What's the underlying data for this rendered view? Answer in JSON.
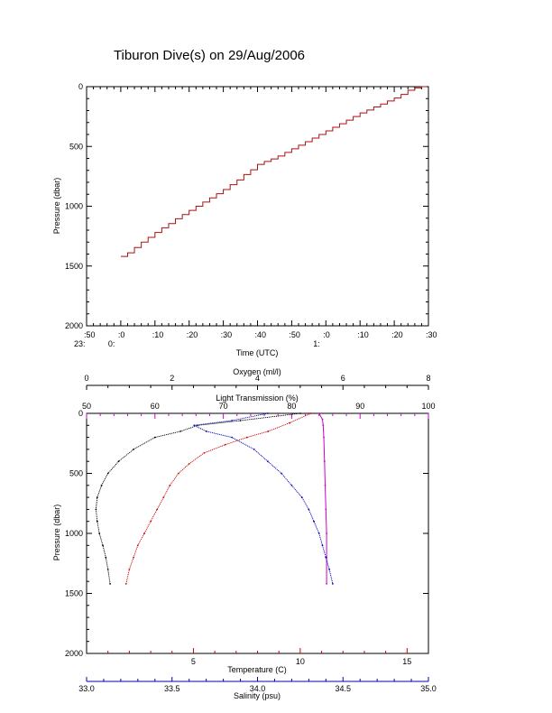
{
  "title": "Tiburon Dive(s) on 29/Aug/2006",
  "colors": {
    "red": "#cc0000",
    "magenta": "#cc00cc",
    "blue": "#0000bb",
    "black": "#000000",
    "dive": "#aa1111"
  },
  "chart_data": [
    {
      "type": "line",
      "title": "Tiburon Dive(s) on 29/Aug/2006",
      "xlabel": "Time (UTC)",
      "ylabel": "Pressure (dbar)",
      "x_ticks_top": [
        ":50",
        ":0",
        ":10",
        ":20",
        ":30",
        ":40",
        ":50",
        ":0",
        ":10",
        ":20",
        ":30"
      ],
      "x_ticks_bottom": [
        "23:",
        "0:",
        "",
        "",
        "",
        "",
        "",
        "1:",
        "",
        "",
        ""
      ],
      "x_minutes": [
        -10,
        0,
        10,
        20,
        30,
        40,
        50,
        60,
        70,
        80,
        90
      ],
      "ylim": [
        2000,
        0
      ],
      "y_ticks": [
        0,
        500,
        1000,
        1500,
        2000
      ],
      "series": [
        {
          "x": [
            0,
            2,
            4,
            6,
            8,
            10,
            12,
            14,
            16,
            18,
            20,
            22,
            24,
            26,
            28,
            30,
            32,
            34,
            36,
            38,
            40,
            42,
            44,
            46,
            48,
            50,
            52,
            54,
            56,
            58,
            60,
            62,
            64,
            66,
            68,
            70,
            72,
            74,
            76,
            78,
            80,
            82,
            84,
            86,
            88
          ],
          "y": [
            1420,
            1390,
            1345,
            1300,
            1260,
            1220,
            1180,
            1145,
            1105,
            1070,
            1035,
            1000,
            965,
            930,
            895,
            860,
            820,
            780,
            735,
            695,
            650,
            625,
            605,
            580,
            550,
            520,
            490,
            460,
            430,
            400,
            370,
            340,
            310,
            280,
            250,
            220,
            195,
            170,
            145,
            120,
            95,
            65,
            30,
            10,
            0
          ]
        }
      ]
    },
    {
      "type": "scatter",
      "ylabel": "Pressure (dbar)",
      "ylim": [
        2000,
        0
      ],
      "y_ticks": [
        0,
        500,
        1000,
        1500,
        2000
      ],
      "axes": {
        "oxygen": {
          "label": "Oxygen (ml/l)",
          "range": [
            0,
            8
          ],
          "ticks": [
            "0",
            "2",
            "4",
            "6",
            "8"
          ]
        },
        "light_transmission": {
          "label": "Light Transmission (%)",
          "range": [
            50,
            100
          ],
          "ticks": [
            "50",
            "60",
            "70",
            "80",
            "90",
            "100"
          ]
        },
        "temperature": {
          "label": "Temperature (C)",
          "range": [
            0,
            16
          ],
          "ticks": [
            "5",
            "10",
            "15"
          ]
        },
        "salinity": {
          "label": "Salinity (psu)",
          "range": [
            33.0,
            35.0
          ],
          "ticks": [
            "33.0",
            "33.5",
            "34.0",
            "34.5",
            "35.0"
          ]
        }
      },
      "series": [
        {
          "axis": "oxygen",
          "color": "black",
          "points": [
            [
              5.0,
              0
            ],
            [
              3.6,
              60
            ],
            [
              2.6,
              100
            ],
            [
              2.2,
              150
            ],
            [
              1.6,
              200
            ],
            [
              1.1,
              300
            ],
            [
              0.75,
              400
            ],
            [
              0.5,
              500
            ],
            [
              0.35,
              600
            ],
            [
              0.25,
              700
            ],
            [
              0.22,
              800
            ],
            [
              0.25,
              900
            ],
            [
              0.3,
              1000
            ],
            [
              0.38,
              1100
            ],
            [
              0.45,
              1200
            ],
            [
              0.5,
              1300
            ],
            [
              0.55,
              1420
            ]
          ]
        },
        {
          "axis": "light_transmission",
          "color": "magenta",
          "points": [
            [
              84.0,
              0
            ],
            [
              84.5,
              50
            ],
            [
              84.6,
              100
            ],
            [
              84.7,
              200
            ],
            [
              84.8,
              400
            ],
            [
              84.9,
              600
            ],
            [
              85.0,
              800
            ],
            [
              85.1,
              1000
            ],
            [
              85.1,
              1200
            ],
            [
              85.1,
              1420
            ]
          ]
        },
        {
          "axis": "temperature",
          "color": "red",
          "points": [
            [
              10.5,
              0
            ],
            [
              9.5,
              80
            ],
            [
              8.5,
              150
            ],
            [
              7.5,
              200
            ],
            [
              6.5,
              260
            ],
            [
              5.5,
              330
            ],
            [
              4.8,
              420
            ],
            [
              4.3,
              500
            ],
            [
              3.9,
              600
            ],
            [
              3.6,
              700
            ],
            [
              3.3,
              800
            ],
            [
              3.0,
              900
            ],
            [
              2.7,
              1000
            ],
            [
              2.4,
              1100
            ],
            [
              2.2,
              1200
            ],
            [
              2.0,
              1300
            ],
            [
              1.85,
              1420
            ]
          ]
        },
        {
          "axis": "salinity",
          "color": "blue",
          "points": [
            [
              34.06,
              0
            ],
            [
              33.85,
              60
            ],
            [
              33.63,
              100
            ],
            [
              33.7,
              150
            ],
            [
              33.85,
              200
            ],
            [
              33.98,
              300
            ],
            [
              34.06,
              400
            ],
            [
              34.14,
              500
            ],
            [
              34.2,
              600
            ],
            [
              34.26,
              700
            ],
            [
              34.3,
              800
            ],
            [
              34.33,
              900
            ],
            [
              34.36,
              1000
            ],
            [
              34.38,
              1100
            ],
            [
              34.4,
              1200
            ],
            [
              34.42,
              1300
            ],
            [
              34.44,
              1420
            ]
          ]
        }
      ]
    }
  ]
}
